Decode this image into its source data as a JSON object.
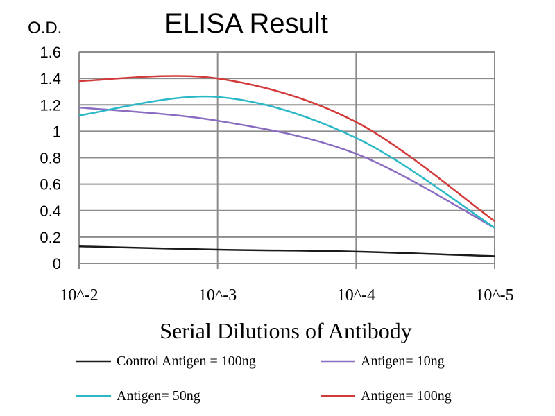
{
  "chart_data": {
    "type": "line",
    "title": "ELISA Result",
    "ylabel": "O.D.",
    "xlabel": "Serial Dilutions of Antibody",
    "categories": [
      "10^-2",
      "10^-3",
      "10^-4",
      "10^-5"
    ],
    "ylim": [
      0,
      1.6
    ],
    "yticks": [
      "0",
      "0.2",
      "0.4",
      "0.6",
      "0.8",
      "1",
      "1.2",
      "1.4",
      "1.6"
    ],
    "grid": true,
    "legend_position": "bottom",
    "series": [
      {
        "name": "Control Antigen = 100ng",
        "color": "#1a1a1a",
        "values": [
          0.13,
          0.105,
          0.09,
          0.055
        ]
      },
      {
        "name": "Antigen= 10ng",
        "color": "#8a6cc0",
        "values": [
          1.18,
          1.08,
          0.83,
          0.27
        ]
      },
      {
        "name": "Antigen= 50ng",
        "color": "#2bb8c6",
        "values": [
          1.12,
          1.26,
          0.95,
          0.27
        ]
      },
      {
        "name": "Antigen= 100ng",
        "color": "#d23a3a",
        "values": [
          1.38,
          1.4,
          1.07,
          0.32
        ]
      }
    ]
  }
}
